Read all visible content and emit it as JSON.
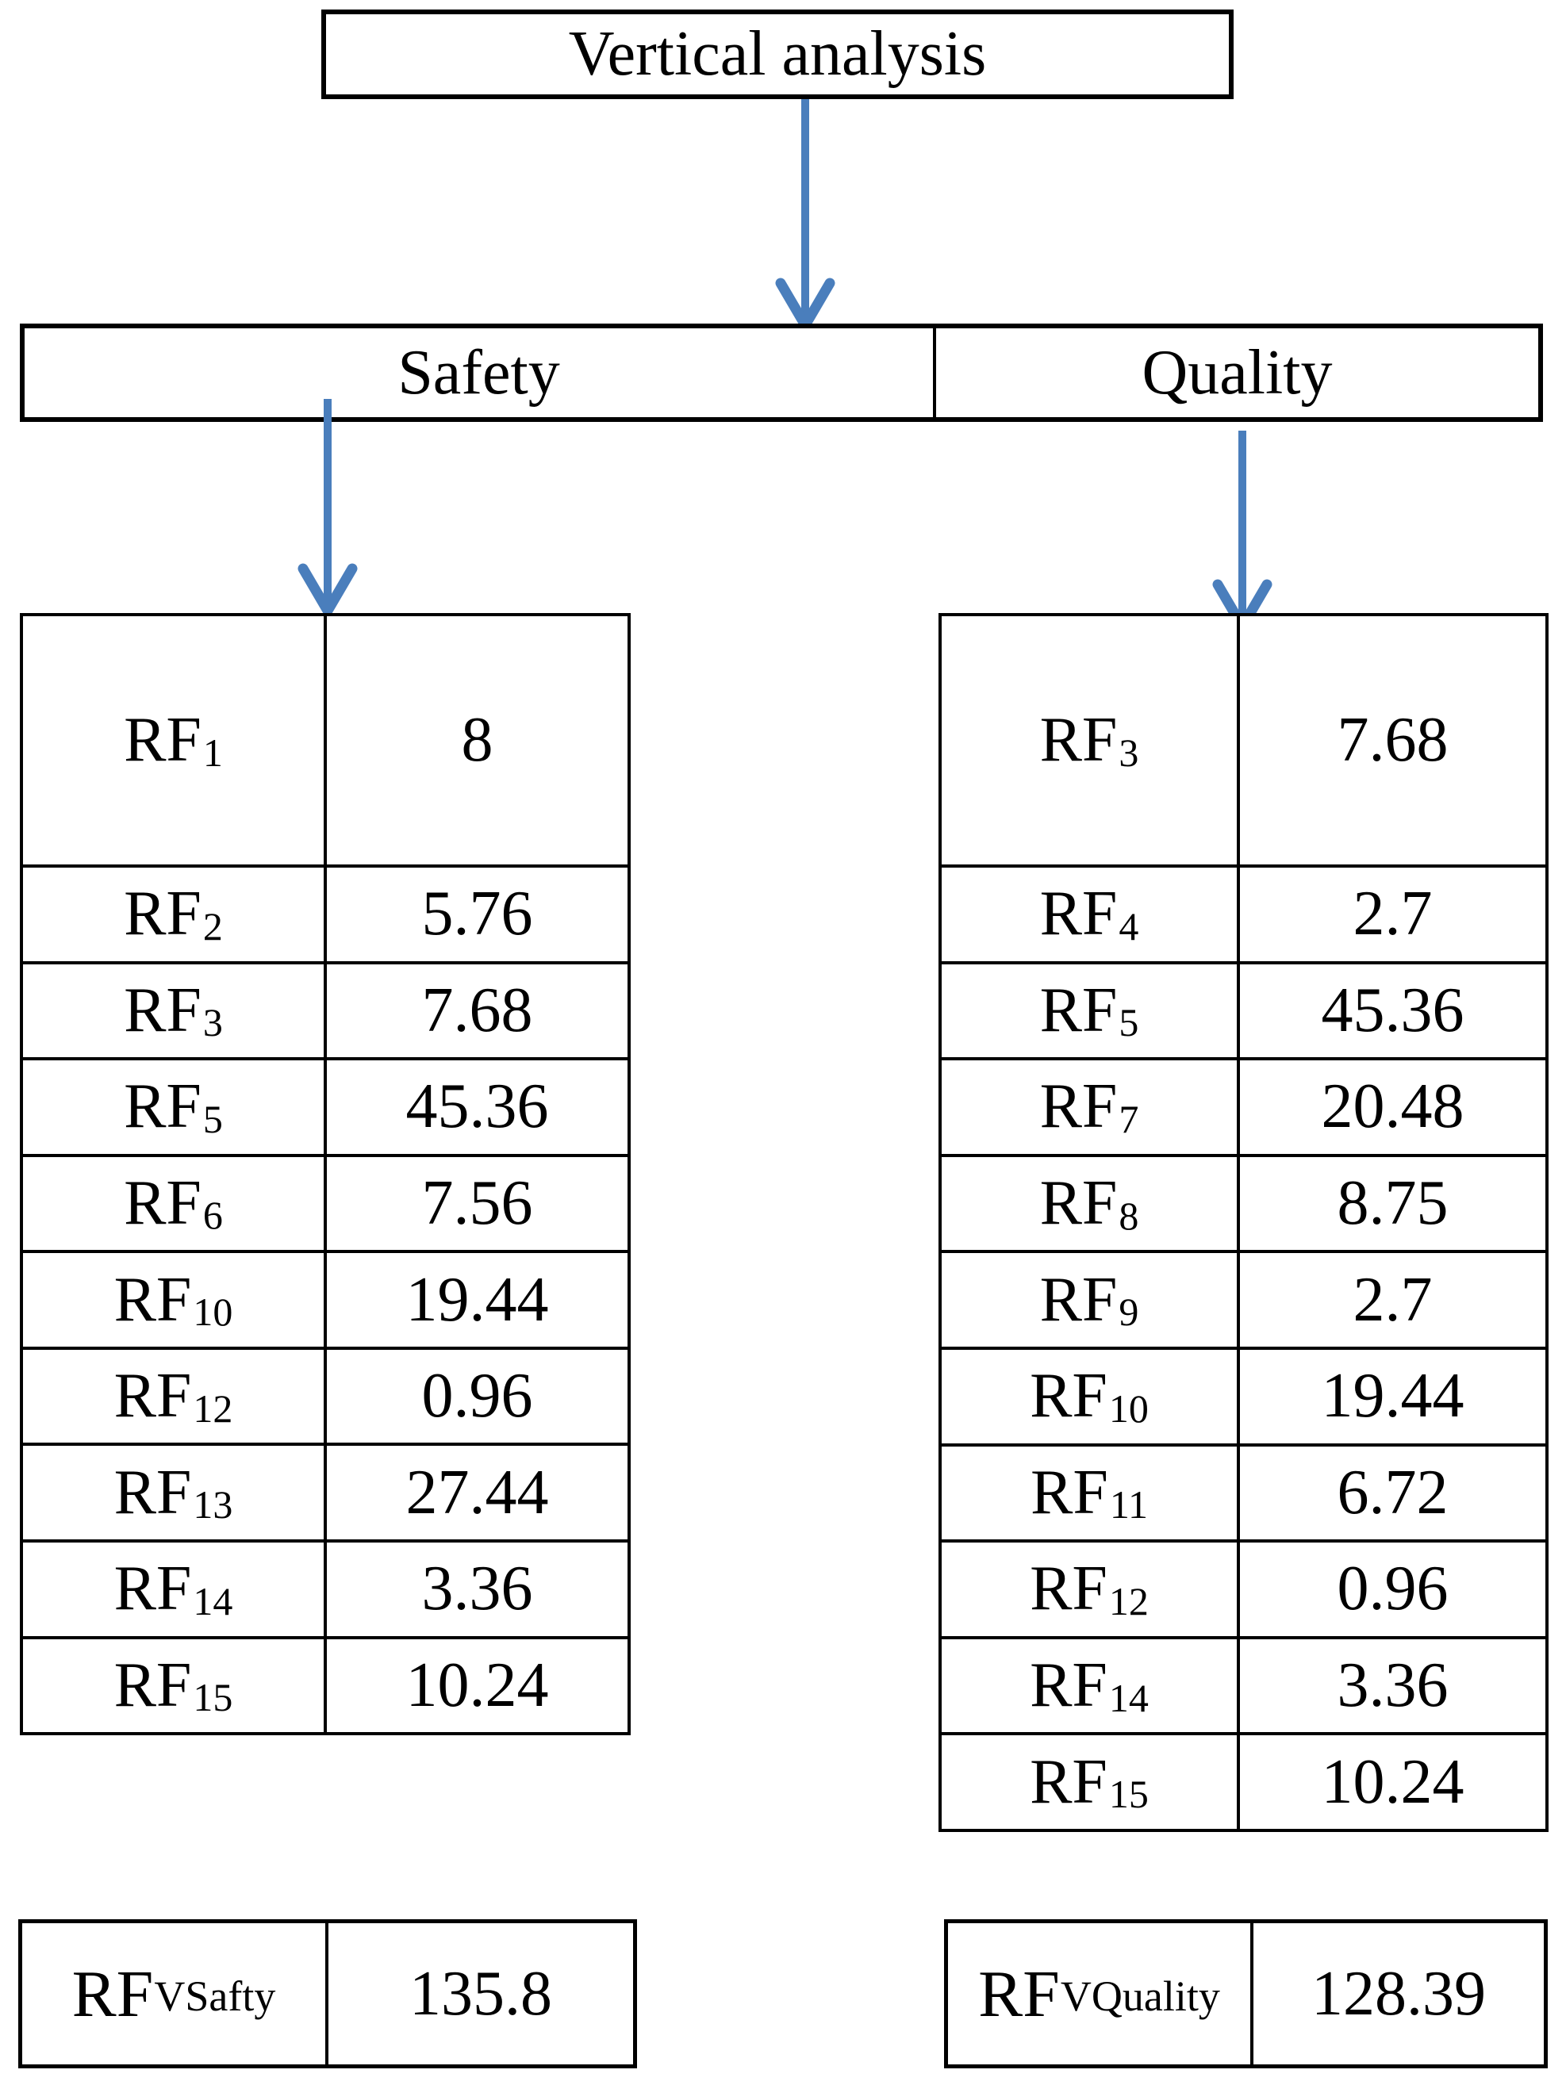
{
  "title": "Vertical analysis",
  "branches": {
    "safety": "Safety",
    "quality": "Quality"
  },
  "arrow_color": "#4A7EBC",
  "safety_table": {
    "rows": [
      {
        "label": "RF",
        "sub": "1",
        "value": "8"
      },
      {
        "label": "RF",
        "sub": "2",
        "value": "5.76"
      },
      {
        "label": "RF",
        "sub": "3",
        "value": "7.68"
      },
      {
        "label": "RF",
        "sub": "5",
        "value": "45.36"
      },
      {
        "label": "RF",
        "sub": "6",
        "value": "7.56"
      },
      {
        "label": "RF",
        "sub": "10",
        "value": "19.44"
      },
      {
        "label": "RF",
        "sub": "12",
        "value": "0.96"
      },
      {
        "label": "RF",
        "sub": "13",
        "value": "27.44"
      },
      {
        "label": "RF",
        "sub": "14",
        "value": "3.36"
      },
      {
        "label": "RF",
        "sub": "15",
        "value": "10.24"
      }
    ]
  },
  "quality_table": {
    "rows": [
      {
        "label": "RF",
        "sub": "3",
        "value": "7.68"
      },
      {
        "label": "RF",
        "sub": "4",
        "value": "2.7"
      },
      {
        "label": "RF",
        "sub": "5",
        "value": "45.36"
      },
      {
        "label": "RF",
        "sub": "7",
        "value": "20.48"
      },
      {
        "label": "RF",
        "sub": "8",
        "value": "8.75"
      },
      {
        "label": "RF",
        "sub": "9",
        "value": "2.7"
      },
      {
        "label": "RF",
        "sub": "10",
        "value": "19.44"
      },
      {
        "label": "RF",
        "sub": "11",
        "value": "6.72"
      },
      {
        "label": "RF",
        "sub": "12",
        "value": "0.96"
      },
      {
        "label": "RF",
        "sub": "14",
        "value": "3.36"
      },
      {
        "label": "RF",
        "sub": "15",
        "value": "10.24"
      }
    ]
  },
  "totals": {
    "safety": {
      "label": "RF",
      "sub": "VSafty",
      "value": "135.8"
    },
    "quality": {
      "label": "RF",
      "sub": "VQuality",
      "value": "128.39"
    }
  }
}
